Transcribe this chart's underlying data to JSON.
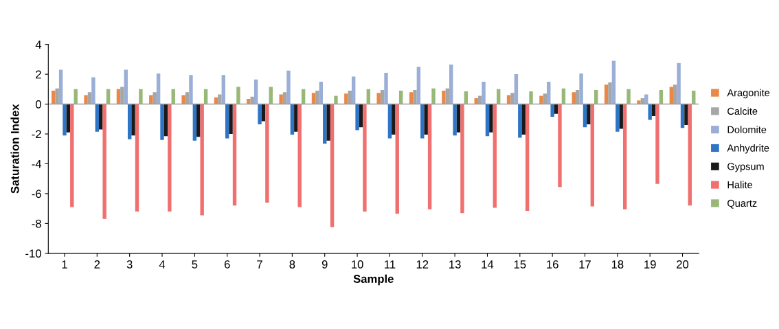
{
  "chart_data": {
    "type": "bar",
    "xlabel": "Sample",
    "ylabel": "Saturation Index",
    "categories": [
      "1",
      "2",
      "3",
      "4",
      "5",
      "6",
      "7",
      "8",
      "9",
      "10",
      "11",
      "12",
      "13",
      "14",
      "15",
      "16",
      "17",
      "18",
      "19",
      "20"
    ],
    "series": [
      {
        "name": "Aragonite",
        "color": "#e8894a",
        "values": [
          0.9,
          0.6,
          1.0,
          0.6,
          0.6,
          0.45,
          0.35,
          0.65,
          0.75,
          0.7,
          0.75,
          0.8,
          0.9,
          0.4,
          0.6,
          0.55,
          0.8,
          1.3,
          0.25,
          1.15
        ]
      },
      {
        "name": "Calcite",
        "color": "#a6a6a6",
        "values": [
          1.05,
          0.8,
          1.15,
          0.8,
          0.8,
          0.65,
          0.5,
          0.8,
          0.9,
          0.9,
          0.95,
          0.95,
          1.05,
          0.55,
          0.75,
          0.7,
          0.95,
          1.45,
          0.4,
          1.3
        ]
      },
      {
        "name": "Dolomite",
        "color": "#9aaed6",
        "values": [
          2.3,
          1.8,
          2.3,
          2.05,
          1.95,
          1.95,
          1.65,
          2.25,
          1.5,
          1.85,
          2.1,
          2.5,
          2.65,
          1.5,
          2.0,
          1.5,
          2.05,
          2.9,
          0.65,
          2.75
        ]
      },
      {
        "name": "Anhydrite",
        "color": "#2e75c8",
        "values": [
          -2.1,
          -1.85,
          -2.35,
          -2.4,
          -2.45,
          -2.3,
          -1.35,
          -2.05,
          -2.65,
          -1.75,
          -2.3,
          -2.3,
          -2.1,
          -2.15,
          -2.25,
          -0.85,
          -1.55,
          -1.85,
          -1.05,
          -1.6
        ]
      },
      {
        "name": "Gypsum",
        "color": "#1a1a1a",
        "values": [
          -1.9,
          -1.7,
          -2.1,
          -2.15,
          -2.2,
          -2.0,
          -1.15,
          -1.85,
          -2.45,
          -1.55,
          -2.05,
          -2.05,
          -1.9,
          -1.9,
          -2.05,
          -0.65,
          -1.35,
          -1.65,
          -0.8,
          -1.4
        ]
      },
      {
        "name": "Halite",
        "color": "#f07070",
        "values": [
          -6.9,
          -7.7,
          -7.2,
          -7.2,
          -7.45,
          -6.8,
          -6.6,
          -6.9,
          -8.25,
          -7.2,
          -7.35,
          -7.05,
          -7.3,
          -6.95,
          -7.15,
          -5.55,
          -6.85,
          -7.05,
          -5.35,
          -6.8
        ]
      },
      {
        "name": "Quartz",
        "color": "#98b878",
        "values": [
          1.0,
          1.0,
          1.0,
          1.0,
          1.0,
          1.15,
          1.15,
          1.0,
          0.55,
          1.0,
          0.9,
          1.05,
          0.85,
          1.0,
          0.85,
          1.05,
          0.95,
          1.0,
          0.95,
          0.9
        ]
      }
    ],
    "ylim": [
      -10,
      4
    ],
    "yticks": [
      -10,
      -8,
      -6,
      -4,
      -2,
      0,
      2,
      4
    ],
    "ref_lines": [
      {
        "axis": "y",
        "value": 0,
        "color": "#a0a0a0"
      }
    ],
    "legend": "right"
  }
}
